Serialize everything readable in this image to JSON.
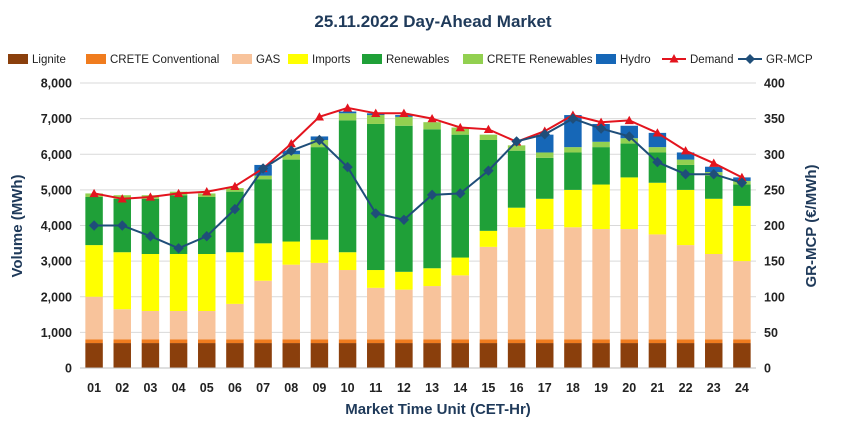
{
  "chart_data": {
    "type": "bar",
    "title": "25.11.2022  Day-Ahead Market",
    "xlabel": "Market Time Unit (CET-Hr)",
    "ylabel": "Volume (MWh)",
    "y2label": "GR-MCP (€/MWh)",
    "ylim": [
      0,
      8000
    ],
    "y2lim": [
      0,
      400
    ],
    "yticks": [
      "0",
      "1,000",
      "2,000",
      "3,000",
      "4,000",
      "5,000",
      "6,000",
      "7,000",
      "8,000"
    ],
    "y2ticks": [
      "0",
      "50",
      "100",
      "150",
      "200",
      "250",
      "300",
      "350",
      "400"
    ],
    "categories": [
      "01",
      "02",
      "03",
      "04",
      "05",
      "06",
      "07",
      "08",
      "09",
      "10",
      "11",
      "12",
      "13",
      "14",
      "15",
      "16",
      "17",
      "18",
      "19",
      "20",
      "21",
      "22",
      "23",
      "24"
    ],
    "legend_position": "top",
    "series": [
      {
        "name": "Lignite",
        "kind": "bar",
        "color": "#8a3f0c",
        "values": [
          700,
          700,
          700,
          700,
          700,
          700,
          700,
          700,
          700,
          700,
          700,
          700,
          700,
          700,
          700,
          700,
          700,
          700,
          700,
          700,
          700,
          700,
          700,
          700
        ]
      },
      {
        "name": "CRETE Conventional",
        "kind": "bar",
        "color": "#f07c1e",
        "values": [
          100,
          100,
          100,
          100,
          100,
          100,
          100,
          100,
          100,
          100,
          100,
          100,
          100,
          100,
          100,
          100,
          100,
          100,
          100,
          100,
          100,
          100,
          100,
          100
        ]
      },
      {
        "name": "GAS",
        "kind": "bar",
        "color": "#f8c39b",
        "values": [
          1200,
          850,
          800,
          800,
          800,
          1000,
          1650,
          2100,
          2150,
          1950,
          1450,
          1400,
          1500,
          1800,
          2600,
          3150,
          3100,
          3150,
          3100,
          3100,
          2950,
          2650,
          2400,
          2200
        ]
      },
      {
        "name": "Imports",
        "kind": "bar",
        "color": "#ffff00",
        "values": [
          1450,
          1600,
          1600,
          1600,
          1600,
          1450,
          1050,
          650,
          650,
          500,
          500,
          500,
          500,
          500,
          450,
          550,
          850,
          1050,
          1250,
          1450,
          1450,
          1550,
          1550,
          1550
        ]
      },
      {
        "name": "Renewables",
        "kind": "bar",
        "color": "#1fa038",
        "values": [
          1350,
          1500,
          1550,
          1650,
          1600,
          1700,
          1800,
          2300,
          2600,
          3700,
          4100,
          4100,
          3900,
          3450,
          2550,
          1600,
          1150,
          1050,
          1050,
          950,
          850,
          700,
          650,
          600
        ]
      },
      {
        "name": "CRETE Renewables",
        "kind": "bar",
        "color": "#92d050",
        "values": [
          100,
          100,
          100,
          100,
          100,
          100,
          100,
          150,
          200,
          200,
          250,
          250,
          200,
          200,
          150,
          150,
          150,
          150,
          150,
          150,
          150,
          150,
          100,
          100
        ]
      },
      {
        "name": "Hydro",
        "kind": "bar",
        "color": "#1667b7",
        "values": [
          0,
          0,
          0,
          0,
          0,
          0,
          300,
          100,
          100,
          50,
          50,
          50,
          0,
          0,
          0,
          0,
          500,
          900,
          500,
          350,
          400,
          200,
          150,
          100
        ]
      },
      {
        "name": "Demand",
        "kind": "line",
        "axis": "left",
        "color": "#e3141e",
        "values": [
          4900,
          4750,
          4800,
          4900,
          4950,
          5100,
          5600,
          6300,
          7050,
          7300,
          7150,
          7150,
          7000,
          6750,
          6700,
          6350,
          6650,
          7100,
          6900,
          6950,
          6600,
          6100,
          5750,
          5350
        ]
      },
      {
        "name": "GR-MCP",
        "kind": "line",
        "axis": "right",
        "color": "#1f4e79",
        "values": [
          200,
          200,
          185,
          168,
          185,
          223,
          280,
          305,
          320,
          282,
          217,
          208,
          243,
          245,
          277,
          318,
          328,
          350,
          336,
          325,
          289,
          272,
          272,
          260
        ]
      }
    ]
  }
}
